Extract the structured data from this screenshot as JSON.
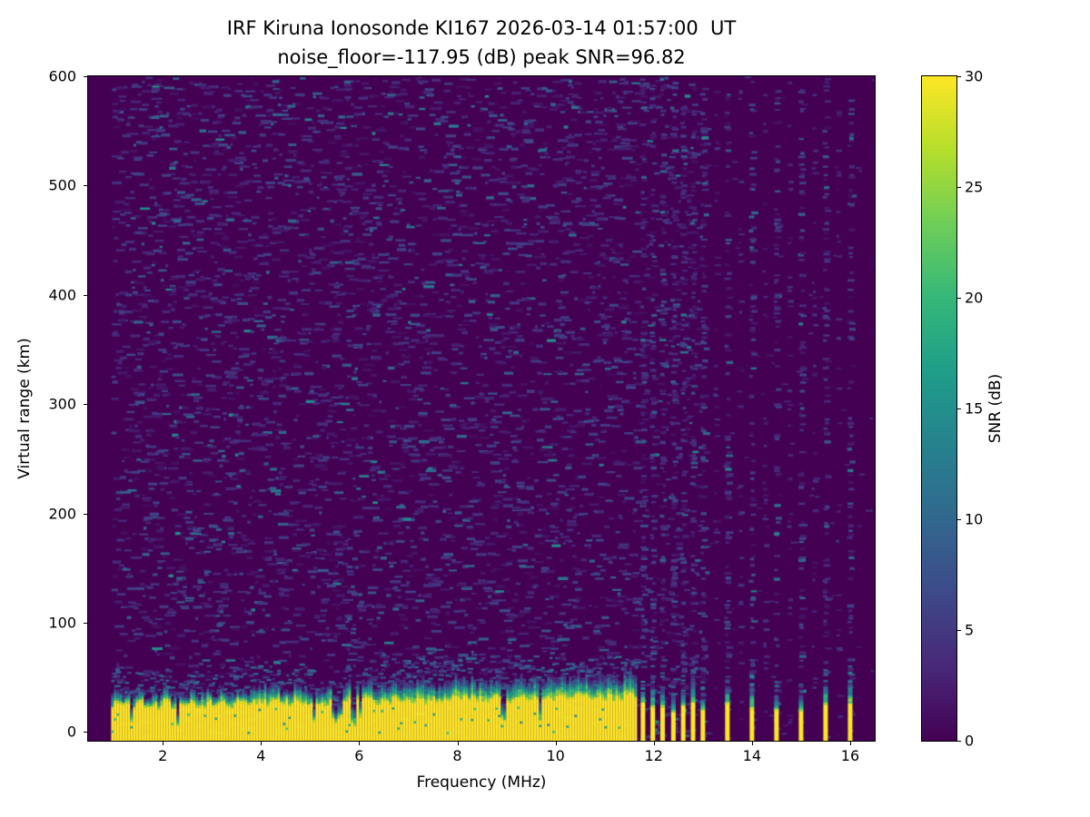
{
  "chart_data": {
    "type": "heatmap",
    "title": "IRF Kiruna Ionosonde KI167 2026-03-14 01:57:00  UT",
    "subtitle": "noise_floor=-117.95 (dB) peak SNR=96.82",
    "xlabel": "Frequency (MHz)",
    "ylabel": "Virtual range (km)",
    "xlim": [
      0.48,
      16.5
    ],
    "ylim": [
      -8,
      600
    ],
    "xticks": [
      2,
      4,
      6,
      8,
      10,
      12,
      14,
      16
    ],
    "yticks": [
      0,
      100,
      200,
      300,
      400,
      500,
      600
    ],
    "grid": false,
    "legend": "none",
    "noise_floor_db": -117.95,
    "peak_snr_db": 96.82,
    "colorbar": {
      "label": "SNR (dB)",
      "min": 0,
      "max": 30,
      "ticks": [
        0,
        5,
        10,
        15,
        20,
        25,
        30
      ],
      "colormap": "viridis",
      "colormap_stops": [
        "#440154",
        "#482878",
        "#3e4989",
        "#31688e",
        "#26828e",
        "#1f9e89",
        "#35b779",
        "#6ece58",
        "#b5de2b",
        "#fde725"
      ]
    },
    "sweep": {
      "start_mhz": 0.95,
      "continuous_end_mhz": 11.64,
      "stepped_frequencies_mhz": [
        11.78,
        11.98,
        12.18,
        12.4,
        12.6,
        12.8,
        13.0,
        13.5,
        14.0,
        14.5,
        15.0,
        15.5,
        16.0
      ],
      "faint_columns_mhz": [
        13.25,
        13.75,
        14.25,
        14.75,
        15.25,
        15.75
      ],
      "dense_noise_range_mhz": [
        11.7,
        13.05
      ]
    },
    "ground_echo_band": {
      "saturated_top_km_low_freq": 24,
      "saturated_top_km_high_freq": 33,
      "transition_extra_km": 14,
      "dip_min_km": 5,
      "dip_probability": 0.08
    },
    "render": {
      "seed": 1337,
      "noise_speckles": 4300,
      "dense_region_speckles": 380,
      "stripe_speckles": 88,
      "faint_column_speckles": 30,
      "right_bg_speckles": 130
    }
  }
}
